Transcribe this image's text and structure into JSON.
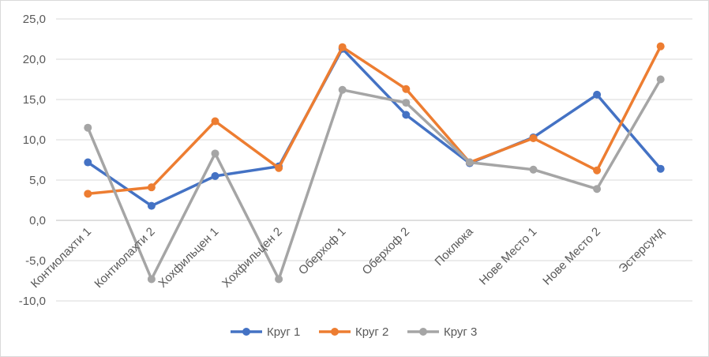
{
  "chart_data": {
    "type": "line",
    "title": "",
    "xlabel": "",
    "ylabel": "",
    "ylim": [
      -10,
      25
    ],
    "ytick_step": 5,
    "ytick_labels": [
      "-10,0",
      "-5,0",
      "0,0",
      "5,0",
      "10,0",
      "15,0",
      "20,0",
      "25,0"
    ],
    "grid": "horizontal",
    "legend_position": "bottom",
    "categories": [
      "Контиолахти 1",
      "Контиолахти 2",
      "Хохфильцен 1",
      "Хохфильцен 2",
      "Оберхоф 1",
      "Оберхоф 2",
      "Поклюка",
      "Нове Место 1",
      "Нове Место 2",
      "Эстерсунд"
    ],
    "series": [
      {
        "name": "Круг 1",
        "color": "#4472C4",
        "values": [
          7.2,
          1.8,
          5.5,
          6.7,
          21.3,
          13.1,
          7.1,
          10.3,
          15.6,
          6.4
        ]
      },
      {
        "name": "Круг 2",
        "color": "#ED7D31",
        "values": [
          3.3,
          4.1,
          12.3,
          6.5,
          21.5,
          16.3,
          7.2,
          10.2,
          6.2,
          21.6
        ]
      },
      {
        "name": "Круг 3",
        "color": "#A5A5A5",
        "values": [
          11.5,
          -7.3,
          8.3,
          -7.3,
          16.2,
          14.6,
          7.2,
          6.3,
          3.9,
          17.5
        ]
      }
    ]
  }
}
